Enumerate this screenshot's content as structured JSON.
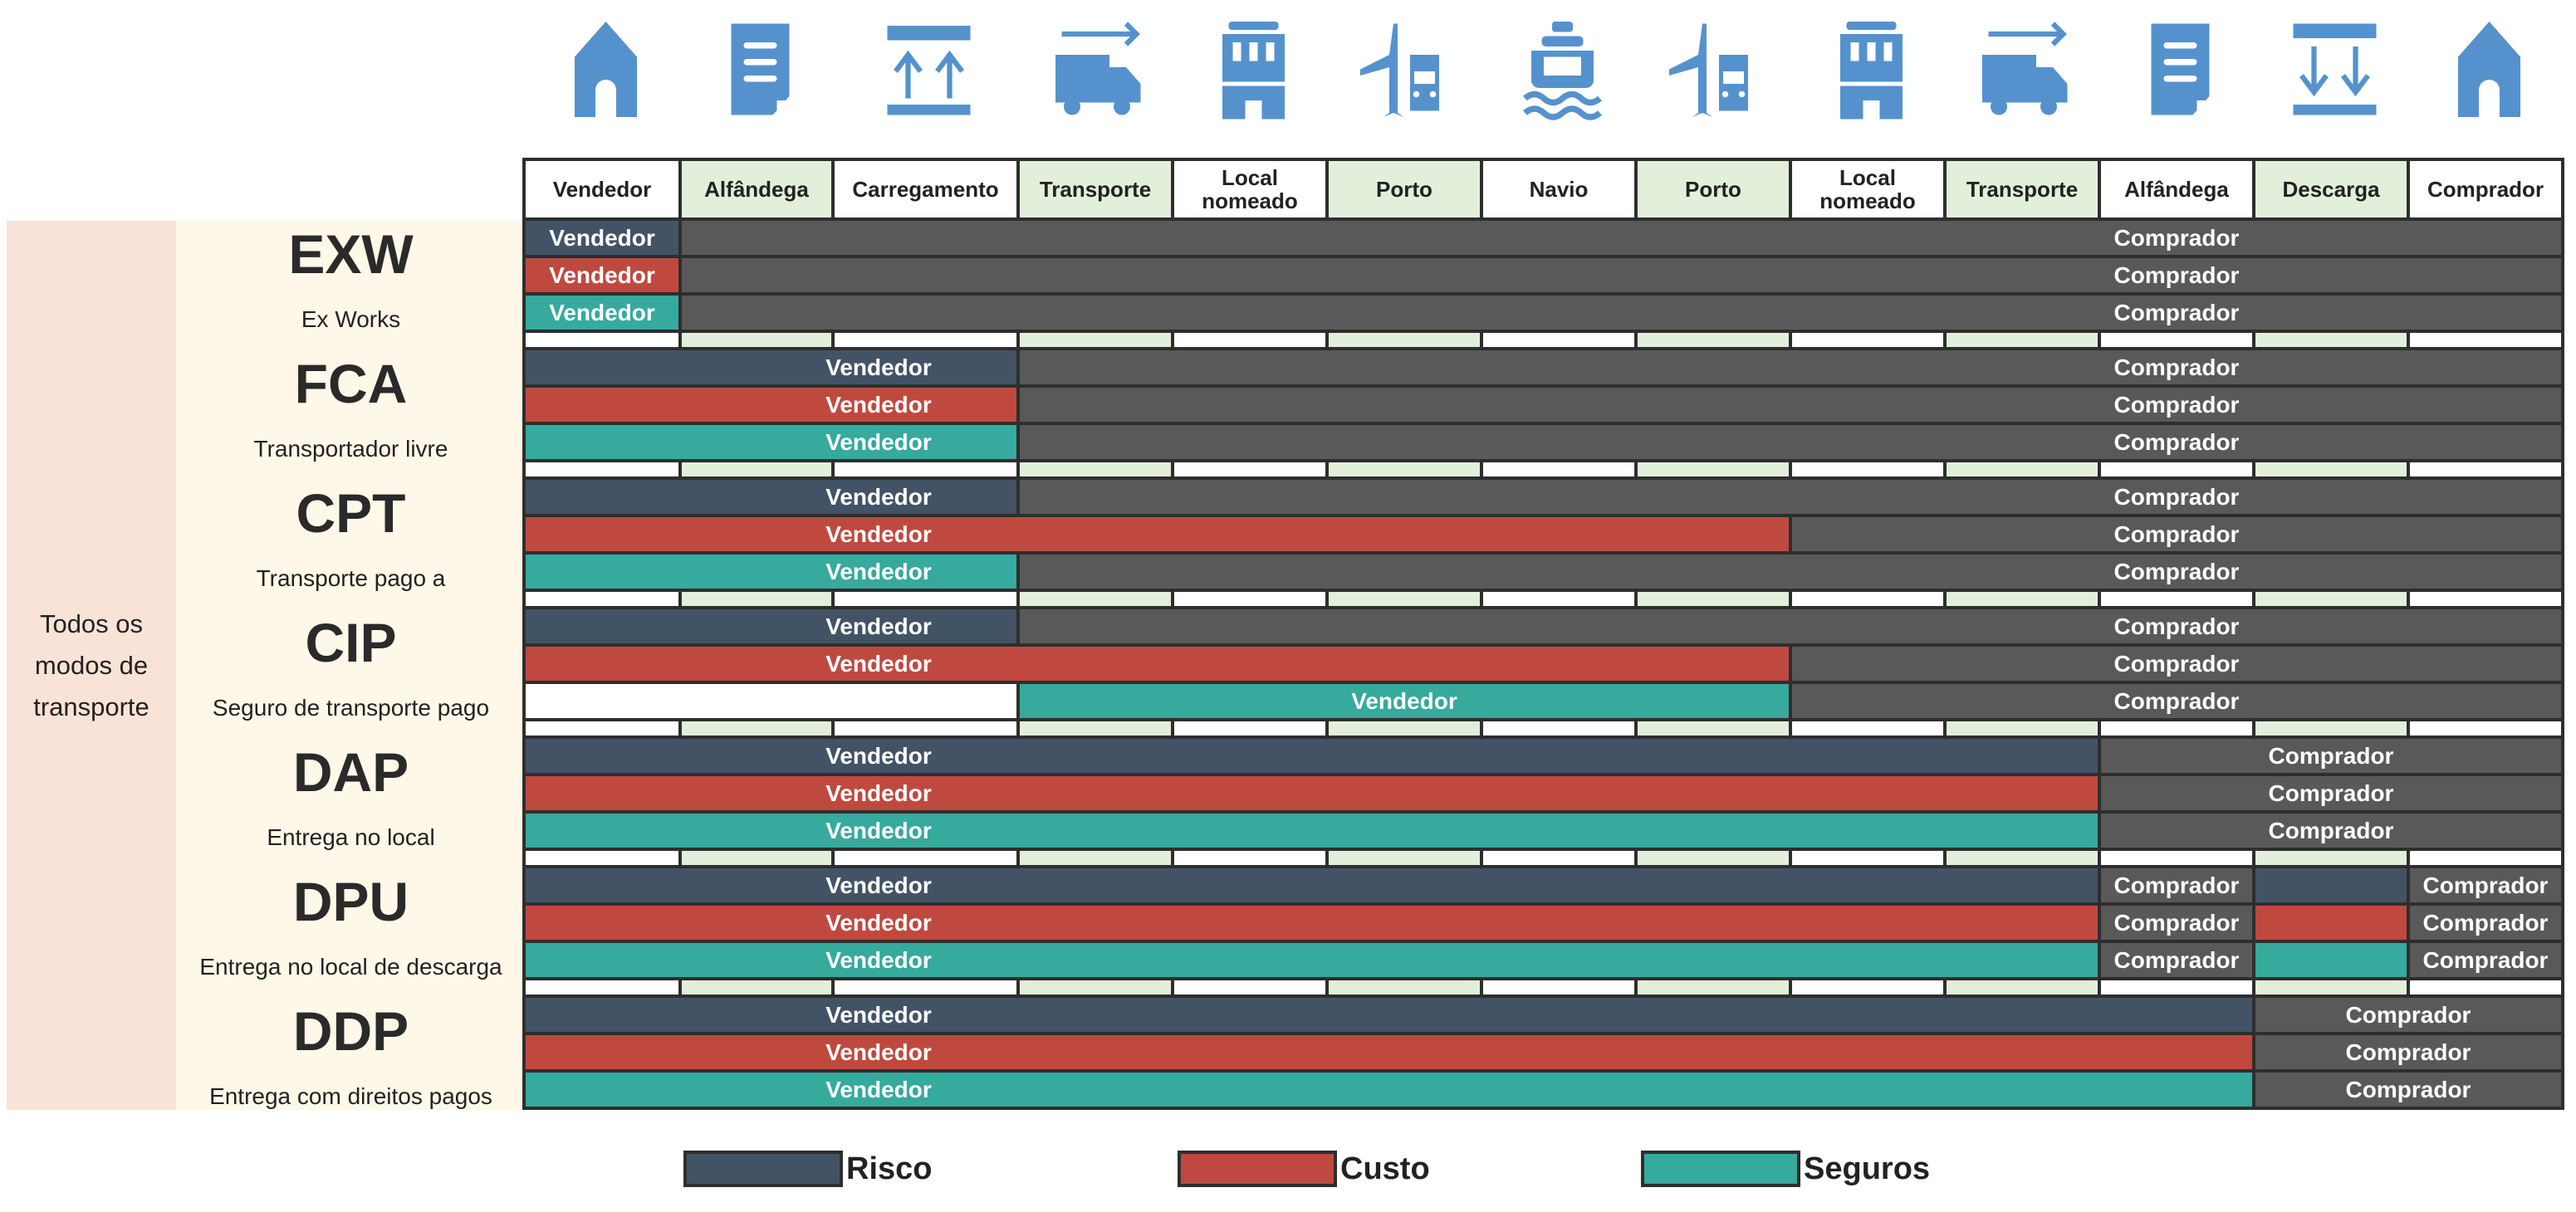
{
  "icons": [
    "house",
    "document",
    "load-up",
    "truck",
    "building",
    "plane-car",
    "ship",
    "plane-car",
    "building",
    "truck",
    "document",
    "unload-down",
    "house"
  ],
  "columns": [
    "Vendedor",
    "Alfândega",
    "Carregamento",
    "Transporte",
    "Local\nnomeado",
    "Porto",
    "Navio",
    "Porto",
    "Local\nnomeado",
    "Transporte",
    "Alfândega",
    "Descarga",
    "Comprador"
  ],
  "group_label": "Todos os modos de transporte",
  "incoterms": [
    {
      "code": "EXW",
      "name": "Ex Works",
      "rows": [
        {
          "type": "risk",
          "segments": [
            {
              "party": "seller",
              "span": 1,
              "label": "Vendedor"
            },
            {
              "party": "buyer",
              "span": 12,
              "label": "Comprador"
            }
          ]
        },
        {
          "type": "cost",
          "segments": [
            {
              "party": "seller",
              "span": 1,
              "label": "Vendedor"
            },
            {
              "party": "buyer",
              "span": 12,
              "label": "Comprador"
            }
          ]
        },
        {
          "type": "insurance",
          "segments": [
            {
              "party": "seller",
              "span": 1,
              "label": "Vendedor"
            },
            {
              "party": "buyer",
              "span": 12,
              "label": "Comprador"
            }
          ]
        }
      ]
    },
    {
      "code": "FCA",
      "name": "Transportador livre",
      "rows": [
        {
          "type": "risk",
          "segments": [
            {
              "party": "seller",
              "span": 3,
              "label": "Vendedor"
            },
            {
              "party": "buyer",
              "span": 10,
              "label": "Comprador"
            }
          ]
        },
        {
          "type": "cost",
          "segments": [
            {
              "party": "seller",
              "span": 3,
              "label": "Vendedor"
            },
            {
              "party": "buyer",
              "span": 10,
              "label": "Comprador"
            }
          ]
        },
        {
          "type": "insurance",
          "segments": [
            {
              "party": "seller",
              "span": 3,
              "label": "Vendedor"
            },
            {
              "party": "buyer",
              "span": 10,
              "label": "Comprador"
            }
          ]
        }
      ]
    },
    {
      "code": "CPT",
      "name": "Transporte pago a",
      "rows": [
        {
          "type": "risk",
          "segments": [
            {
              "party": "seller",
              "span": 3,
              "label": "Vendedor"
            },
            {
              "party": "buyer",
              "span": 10,
              "label": "Comprador"
            }
          ]
        },
        {
          "type": "cost",
          "segments": [
            {
              "party": "seller",
              "span": 8,
              "label": "Vendedor"
            },
            {
              "party": "buyer",
              "span": 5,
              "label": "Comprador"
            }
          ]
        },
        {
          "type": "insurance",
          "segments": [
            {
              "party": "seller",
              "span": 3,
              "label": "Vendedor"
            },
            {
              "party": "buyer",
              "span": 10,
              "label": "Comprador"
            }
          ]
        }
      ]
    },
    {
      "code": "CIP",
      "name": "Seguro de transporte pago",
      "rows": [
        {
          "type": "risk",
          "segments": [
            {
              "party": "seller",
              "span": 3,
              "label": "Vendedor"
            },
            {
              "party": "buyer",
              "span": 10,
              "label": "Comprador"
            }
          ]
        },
        {
          "type": "cost",
          "segments": [
            {
              "party": "seller",
              "span": 8,
              "label": "Vendedor"
            },
            {
              "party": "buyer",
              "span": 5,
              "label": "Comprador"
            }
          ]
        },
        {
          "type": "insurance",
          "segments": [
            {
              "party": "none",
              "span": 3,
              "label": ""
            },
            {
              "party": "seller",
              "span": 5,
              "label": "Vendedor"
            },
            {
              "party": "buyer",
              "span": 5,
              "label": "Comprador"
            }
          ]
        }
      ]
    },
    {
      "code": "DAP",
      "name": "Entrega no local",
      "rows": [
        {
          "type": "risk",
          "segments": [
            {
              "party": "seller",
              "span": 10,
              "label": "Vendedor"
            },
            {
              "party": "buyer",
              "span": 3,
              "label": "Comprador"
            }
          ]
        },
        {
          "type": "cost",
          "segments": [
            {
              "party": "seller",
              "span": 10,
              "label": "Vendedor"
            },
            {
              "party": "buyer",
              "span": 3,
              "label": "Comprador"
            }
          ]
        },
        {
          "type": "insurance",
          "segments": [
            {
              "party": "seller",
              "span": 10,
              "label": "Vendedor"
            },
            {
              "party": "buyer",
              "span": 3,
              "label": "Comprador"
            }
          ]
        }
      ]
    },
    {
      "code": "DPU",
      "name": "Entrega no local de descarga",
      "rows": [
        {
          "type": "risk",
          "segments": [
            {
              "party": "seller",
              "span": 10,
              "label": "Vendedor"
            },
            {
              "party": "buyer",
              "span": 1,
              "label": "Comprador"
            },
            {
              "party": "seller",
              "span": 1,
              "label": ""
            },
            {
              "party": "buyer",
              "span": 1,
              "label": "Comprador"
            }
          ]
        },
        {
          "type": "cost",
          "segments": [
            {
              "party": "seller",
              "span": 10,
              "label": "Vendedor"
            },
            {
              "party": "buyer",
              "span": 1,
              "label": "Comprador"
            },
            {
              "party": "seller",
              "span": 1,
              "label": ""
            },
            {
              "party": "buyer",
              "span": 1,
              "label": "Comprador"
            }
          ]
        },
        {
          "type": "insurance",
          "segments": [
            {
              "party": "seller",
              "span": 10,
              "label": "Vendedor"
            },
            {
              "party": "buyer",
              "span": 1,
              "label": "Comprador"
            },
            {
              "party": "seller",
              "span": 1,
              "label": ""
            },
            {
              "party": "buyer",
              "span": 1,
              "label": "Comprador"
            }
          ]
        }
      ]
    },
    {
      "code": "DDP",
      "name": "Entrega com direitos pagos",
      "rows": [
        {
          "type": "risk",
          "segments": [
            {
              "party": "seller",
              "span": 11,
              "label": "Vendedor"
            },
            {
              "party": "buyer",
              "span": 2,
              "label": "Comprador"
            }
          ]
        },
        {
          "type": "cost",
          "segments": [
            {
              "party": "seller",
              "span": 11,
              "label": "Vendedor"
            },
            {
              "party": "buyer",
              "span": 2,
              "label": "Comprador"
            }
          ]
        },
        {
          "type": "insurance",
          "segments": [
            {
              "party": "seller",
              "span": 11,
              "label": "Vendedor"
            },
            {
              "party": "buyer",
              "span": 2,
              "label": "Comprador"
            }
          ]
        }
      ]
    }
  ],
  "legend": [
    {
      "type": "risk",
      "label": "Risco"
    },
    {
      "type": "cost",
      "label": "Custo"
    },
    {
      "type": "insurance",
      "label": "Seguros"
    }
  ],
  "colors": {
    "risk": "#435366",
    "cost": "#c0493f",
    "insurance": "#35aa9d",
    "buyer": "#595959",
    "icon": "#5592cd",
    "header_alt": "#e2efda"
  }
}
